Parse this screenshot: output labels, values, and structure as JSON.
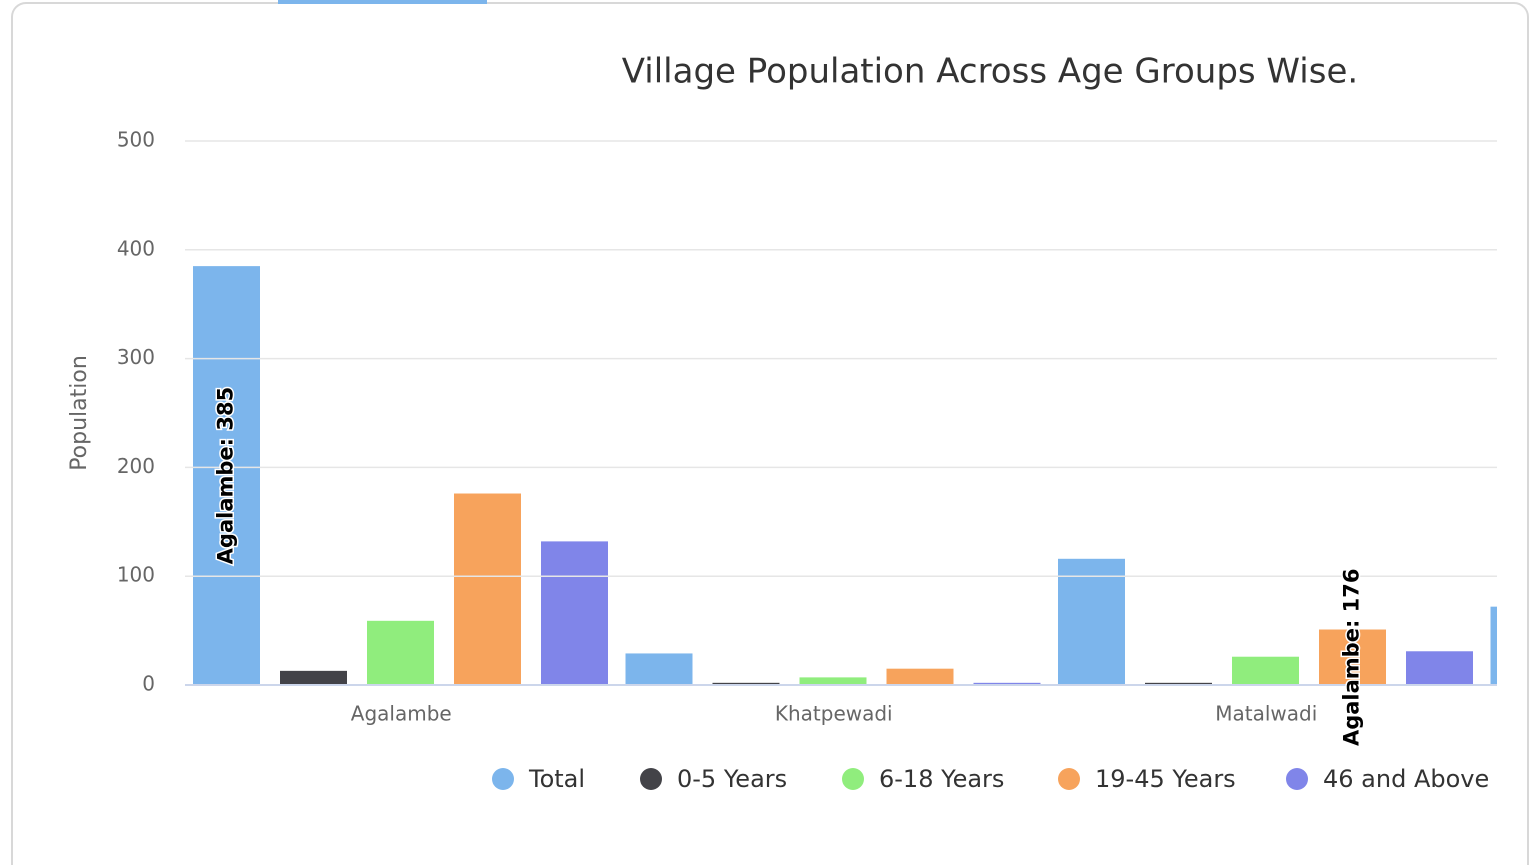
{
  "chart_data": {
    "type": "bar",
    "title": "Village Population Across Age Groups Wise.",
    "y_label": "Population",
    "categories": [
      "Agalambe",
      "Khatpewadi",
      "Matalwadi",
      null
    ],
    "series": [
      {
        "name": "Total",
        "color": "#7cb5ec",
        "values": [
          385,
          29,
          116,
          72
        ],
        "value_labels": [
          "Agalambe: 385",
          null,
          null,
          null
        ]
      },
      {
        "name": "0-5 Years",
        "color": "#434348",
        "values": [
          13,
          2,
          2,
          null
        ]
      },
      {
        "name": "6-18 Years",
        "color": "#90ed7d",
        "values": [
          59,
          7,
          26,
          null
        ]
      },
      {
        "name": "19-45 Years",
        "color": "#f7a35c",
        "values": [
          176,
          15,
          51,
          null
        ],
        "value_labels": [
          null,
          null,
          "Agalambe: 176",
          null
        ]
      },
      {
        "name": "46 and Above",
        "color": "#8085e9",
        "values": [
          132,
          2,
          31,
          null
        ]
      }
    ],
    "ylim": [
      0,
      500
    ],
    "yticks": [
      0,
      100,
      200,
      300,
      400,
      500
    ],
    "grid": true,
    "legend": "bottom"
  }
}
